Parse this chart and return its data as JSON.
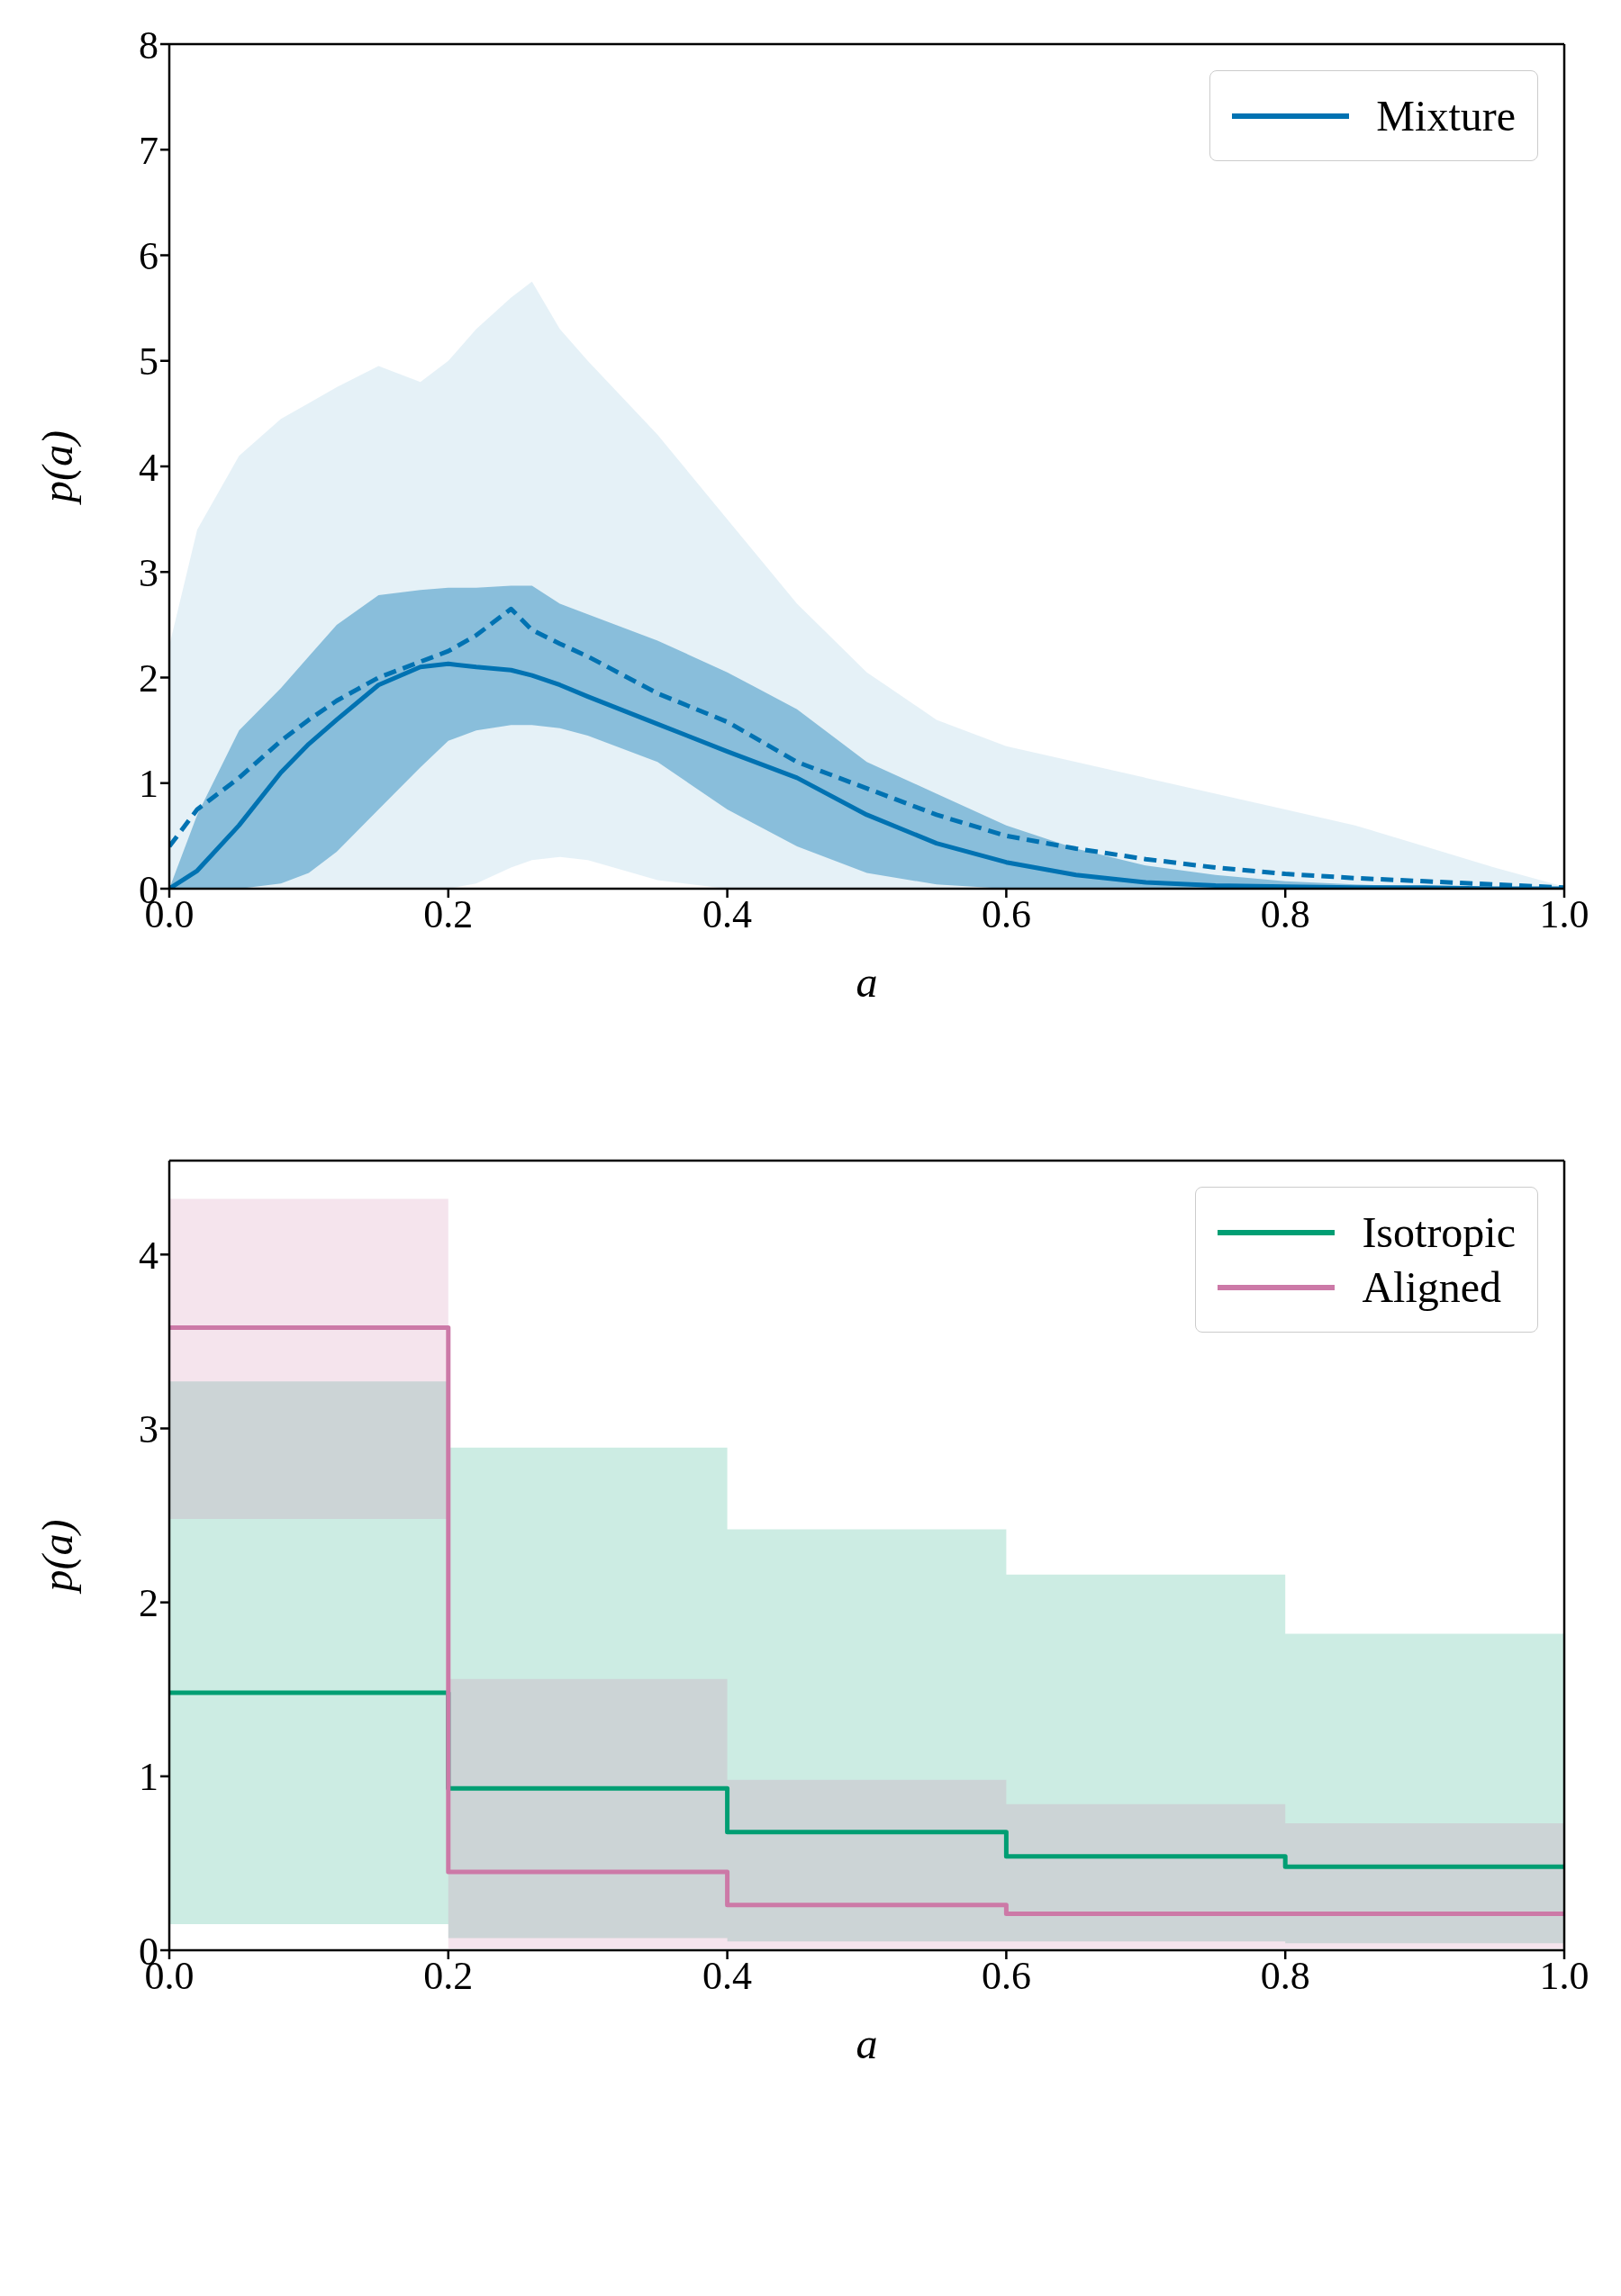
{
  "chart_data": [
    {
      "type": "line",
      "xlabel": "a",
      "ylabel": "p(a)",
      "legend": "top right",
      "x": [
        0,
        0.02,
        0.05,
        0.08,
        0.1,
        0.12,
        0.15,
        0.18,
        0.2,
        0.22,
        0.245,
        0.26,
        0.28,
        0.3,
        0.35,
        0.4,
        0.45,
        0.5,
        0.55,
        0.6,
        0.65,
        0.7,
        0.75,
        0.8,
        0.85,
        0.9,
        0.95,
        1.0
      ],
      "xlim": [
        0,
        1
      ],
      "xticks": [
        {
          "value": 0,
          "label": "0.0"
        },
        {
          "value": 0.2,
          "label": "0.2"
        },
        {
          "value": 0.4,
          "label": "0.4"
        },
        {
          "value": 0.6,
          "label": "0.6"
        },
        {
          "value": 0.8,
          "label": "0.8"
        },
        {
          "value": 1,
          "label": "1.0"
        }
      ],
      "ylim": [
        0,
        8
      ],
      "yticks": [
        0,
        1,
        2,
        3,
        4,
        5,
        6,
        7,
        8
      ],
      "series": [
        {
          "name": "Mixture",
          "color": "#0072b2",
          "line_style": "solid",
          "values": [
            0,
            0.17,
            0.6,
            1.1,
            1.37,
            1.6,
            1.93,
            2.1,
            2.13,
            2.1,
            2.07,
            2.02,
            1.93,
            1.82,
            1.56,
            1.3,
            1.05,
            0.7,
            0.43,
            0.25,
            0.13,
            0.06,
            0.03,
            0.02,
            0.01,
            0.01,
            0,
            0
          ],
          "lower": [
            0,
            0,
            0,
            0.05,
            0.15,
            0.35,
            0.75,
            1.15,
            1.4,
            1.5,
            1.55,
            1.55,
            1.52,
            1.45,
            1.2,
            0.75,
            0.4,
            0.15,
            0.04,
            0,
            0,
            0,
            0,
            0,
            0,
            0,
            0,
            0
          ],
          "upper": [
            0,
            0.7,
            1.5,
            1.9,
            2.2,
            2.5,
            2.78,
            2.83,
            2.85,
            2.85,
            2.87,
            2.87,
            2.7,
            2.6,
            2.35,
            2.05,
            1.7,
            1.2,
            0.9,
            0.6,
            0.38,
            0.22,
            0.13,
            0.07,
            0.04,
            0.02,
            0.01,
            0
          ]
        },
        {
          "color": "#0072b2",
          "line_style": "dashed",
          "values": [
            0.4,
            0.75,
            1.05,
            1.4,
            1.6,
            1.78,
            2.0,
            2.15,
            2.25,
            2.4,
            2.65,
            2.45,
            2.32,
            2.2,
            1.85,
            1.58,
            1.2,
            0.95,
            0.7,
            0.5,
            0.38,
            0.28,
            0.2,
            0.14,
            0.1,
            0.07,
            0.04,
            0.01
          ],
          "lower": [
            0,
            0,
            0,
            0,
            0,
            0,
            0,
            0,
            0,
            0.05,
            0.2,
            0.27,
            0.3,
            0.27,
            0.08,
            0,
            0,
            0,
            0,
            0,
            0,
            0,
            0,
            0,
            0,
            0,
            0,
            0
          ],
          "upper": [
            2.3,
            3.4,
            4.1,
            4.45,
            4.6,
            4.75,
            4.95,
            4.8,
            5.0,
            5.3,
            5.6,
            5.75,
            5.3,
            5.0,
            4.3,
            3.5,
            2.7,
            2.05,
            1.6,
            1.35,
            1.2,
            1.05,
            0.9,
            0.75,
            0.6,
            0.4,
            0.2,
            0.02
          ]
        }
      ]
    },
    {
      "type": "step",
      "xlabel": "a",
      "ylabel": "p(a)",
      "legend": "top right",
      "x": [
        0,
        0.2,
        0.4,
        0.6,
        0.8,
        1.0
      ],
      "xlim": [
        0,
        1
      ],
      "xticks": [
        {
          "value": 0,
          "label": "0.0"
        },
        {
          "value": 0.2,
          "label": "0.2"
        },
        {
          "value": 0.4,
          "label": "0.4"
        },
        {
          "value": 0.6,
          "label": "0.6"
        },
        {
          "value": 0.8,
          "label": "0.8"
        },
        {
          "value": 1,
          "label": "1.0"
        }
      ],
      "ylim": [
        0,
        4.54
      ],
      "yticks": [
        0,
        1,
        2,
        3,
        4
      ],
      "series": [
        {
          "name": "Isotropic",
          "color": "#009e73",
          "values": [
            1.48,
            0.93,
            0.68,
            0.54,
            0.48,
            0.48
          ],
          "lower": [
            0.15,
            0.07,
            0.05,
            0.05,
            0.04,
            0.04
          ],
          "upper": [
            3.27,
            2.89,
            2.42,
            2.16,
            1.82,
            1.82
          ]
        },
        {
          "name": "Aligned",
          "color": "#cc79a7",
          "values": [
            3.58,
            0.45,
            0.26,
            0.21,
            0.21,
            0.21
          ],
          "lower": [
            2.48,
            0.01,
            0.01,
            0.01,
            0.01,
            0.01
          ],
          "upper": [
            4.32,
            1.56,
            0.98,
            0.84,
            0.73,
            0.73
          ]
        }
      ]
    }
  ]
}
